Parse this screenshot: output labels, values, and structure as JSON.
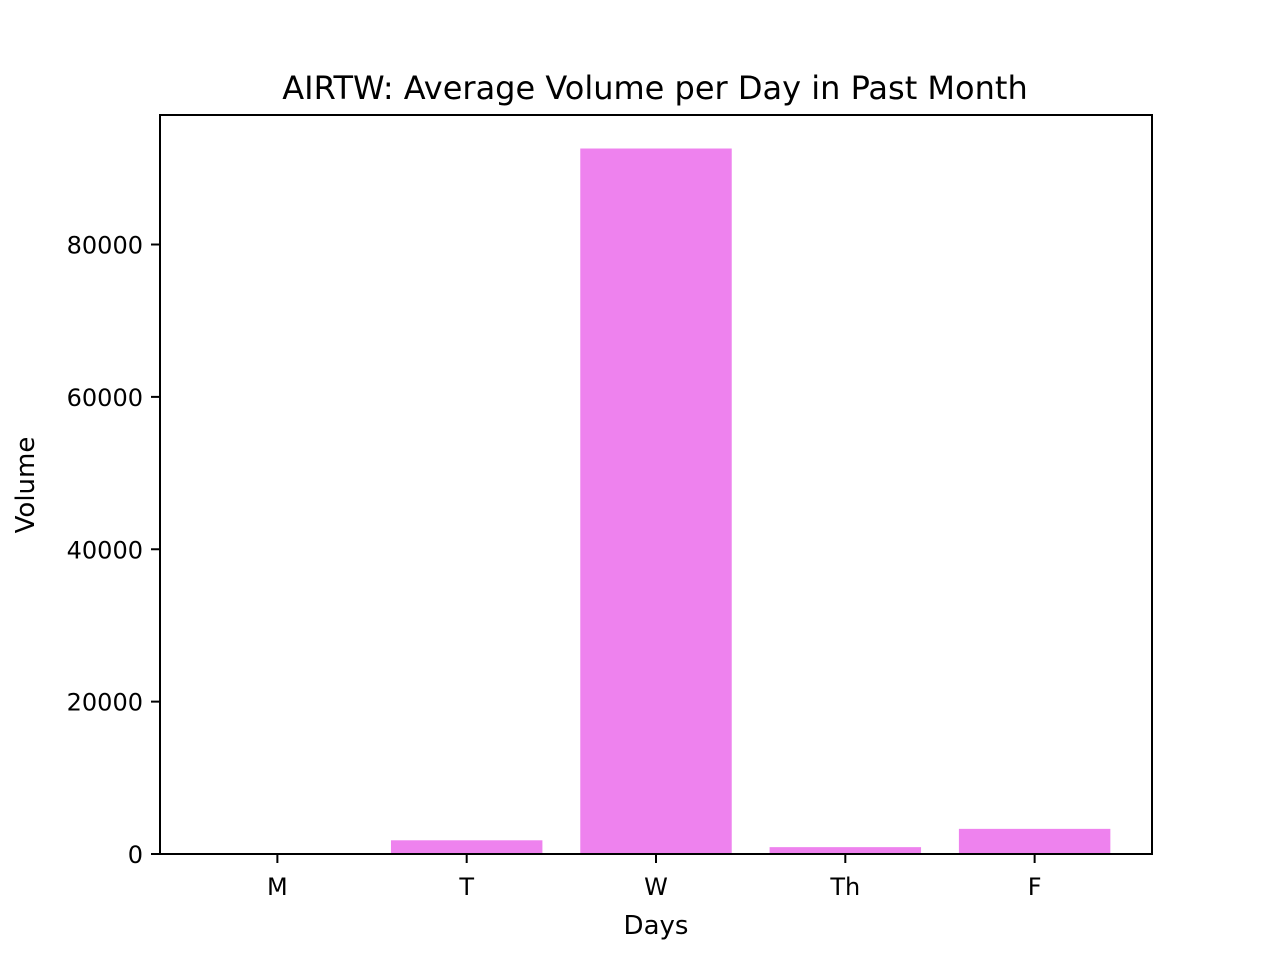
{
  "chart_data": {
    "type": "bar",
    "title": "AIRTW: Average Volume per Day in Past Month",
    "xlabel": "Days",
    "ylabel": "Volume",
    "categories": [
      "M",
      "T",
      "W",
      "Th",
      "F"
    ],
    "values": [
      0,
      1800,
      92600,
      900,
      3300
    ],
    "ylim": [
      0,
      97000
    ],
    "yticks": [
      0,
      20000,
      40000,
      60000,
      80000
    ],
    "ytick_labels": [
      "0",
      "20000",
      "40000",
      "60000",
      "80000"
    ],
    "bar_color": "#ee82ee",
    "grid": false,
    "legend": "none"
  }
}
